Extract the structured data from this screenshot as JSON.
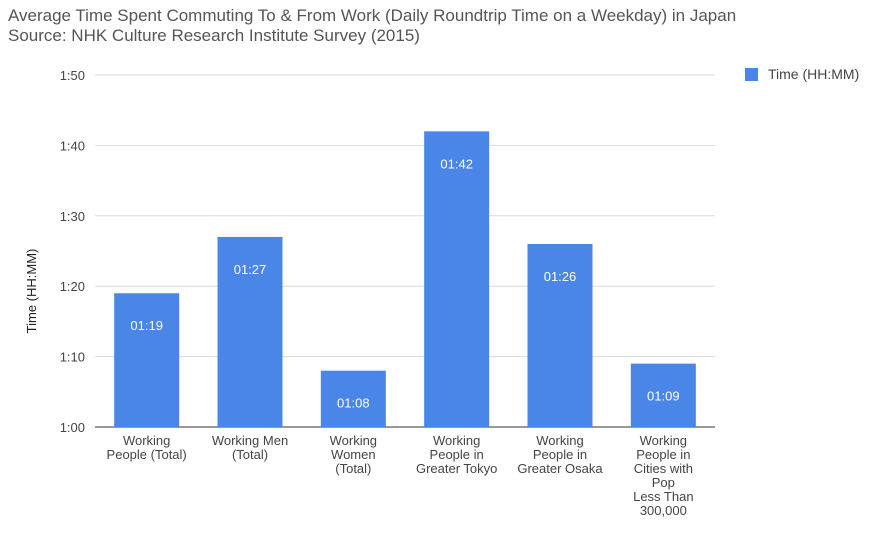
{
  "title_line1": "Average Time Spent Commuting To & From Work (Daily Roundtrip Time on a Weekday) in Japan",
  "title_line2": "Source: NHK Culture Research Institute Survey (2015)",
  "colors": {
    "bar": "#4a86e8",
    "grid": "#d9d9d9",
    "axis": "#333333",
    "text": "#444444",
    "label_on_bar": "#ffffff"
  },
  "chart_data": {
    "type": "bar",
    "categories": [
      [
        "Working",
        "People (Total)"
      ],
      [
        "Working Men",
        "(Total)"
      ],
      [
        "Working",
        "Women",
        "(Total)"
      ],
      [
        "Working",
        "People in",
        "Greater Tokyo"
      ],
      [
        "Working",
        "People in",
        "Greater Osaka"
      ],
      [
        "Working",
        "People in",
        "Cities with",
        "Pop",
        "Less Than",
        "300,000"
      ]
    ],
    "series": [
      {
        "name": "Time (HH:MM)",
        "values": [
          79,
          87,
          68,
          102,
          86,
          69
        ],
        "labels": [
          "01:19",
          "01:27",
          "01:08",
          "01:42",
          "01:26",
          "01:09"
        ]
      }
    ],
    "ylabel": "Time (HH:MM)",
    "ylim": [
      60,
      110
    ],
    "yticks": [
      60,
      70,
      80,
      90,
      100,
      110
    ],
    "ytick_labels": [
      "1:00",
      "1:10",
      "1:20",
      "1:30",
      "1:40",
      "1:50"
    ],
    "grid": true,
    "legend": "top-right"
  }
}
